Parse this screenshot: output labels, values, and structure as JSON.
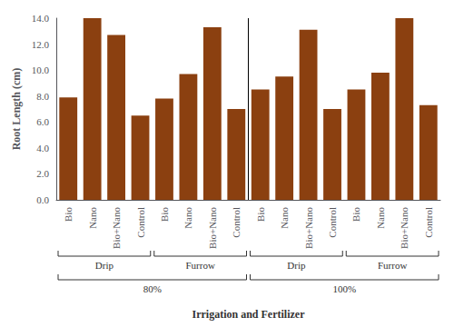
{
  "chart_data": {
    "type": "bar",
    "categories": [
      "Bio",
      "Nano",
      "Bio+Nano",
      "Control",
      "Bio",
      "Nano",
      "Bio+Nano",
      "Control",
      "Bio",
      "Nano",
      "Bio+Nano",
      "Control",
      "Bio",
      "Nano",
      "Bio+Nano",
      "Control"
    ],
    "category_levels": [
      [
        "Drip",
        "Drip",
        "Drip",
        "Drip",
        "Furrow",
        "Furrow",
        "Furrow",
        "Furrow",
        "Drip",
        "Drip",
        "Drip",
        "Drip",
        "Furrow",
        "Furrow",
        "Furrow",
        "Furrow"
      ],
      [
        "80%",
        "80%",
        "80%",
        "80%",
        "80%",
        "80%",
        "80%",
        "80%",
        "100%",
        "100%",
        "100%",
        "100%",
        "100%",
        "100%",
        "100%",
        "100%"
      ]
    ],
    "values": [
      7.9,
      14.0,
      12.7,
      6.5,
      7.8,
      9.7,
      13.3,
      7.0,
      8.5,
      9.5,
      13.1,
      7.0,
      8.5,
      9.8,
      14.0,
      7.3
    ],
    "color": "#8B4010",
    "xlabel": "Irrigation and Fertilizer",
    "ylabel": "Root Length (cm)",
    "ylim": [
      0,
      14.0
    ],
    "yticks": [
      {
        "value": 0,
        "label": "0.0"
      },
      {
        "value": 2,
        "label": "2.0"
      },
      {
        "value": 4,
        "label": "4.0"
      },
      {
        "value": 6,
        "label": "6.0"
      },
      {
        "value": 8,
        "label": "8.0"
      },
      {
        "value": 10,
        "label": "10.0"
      },
      {
        "value": 12,
        "label": "12.0"
      },
      {
        "value": 14,
        "label": "14.0"
      }
    ],
    "grid": false
  }
}
